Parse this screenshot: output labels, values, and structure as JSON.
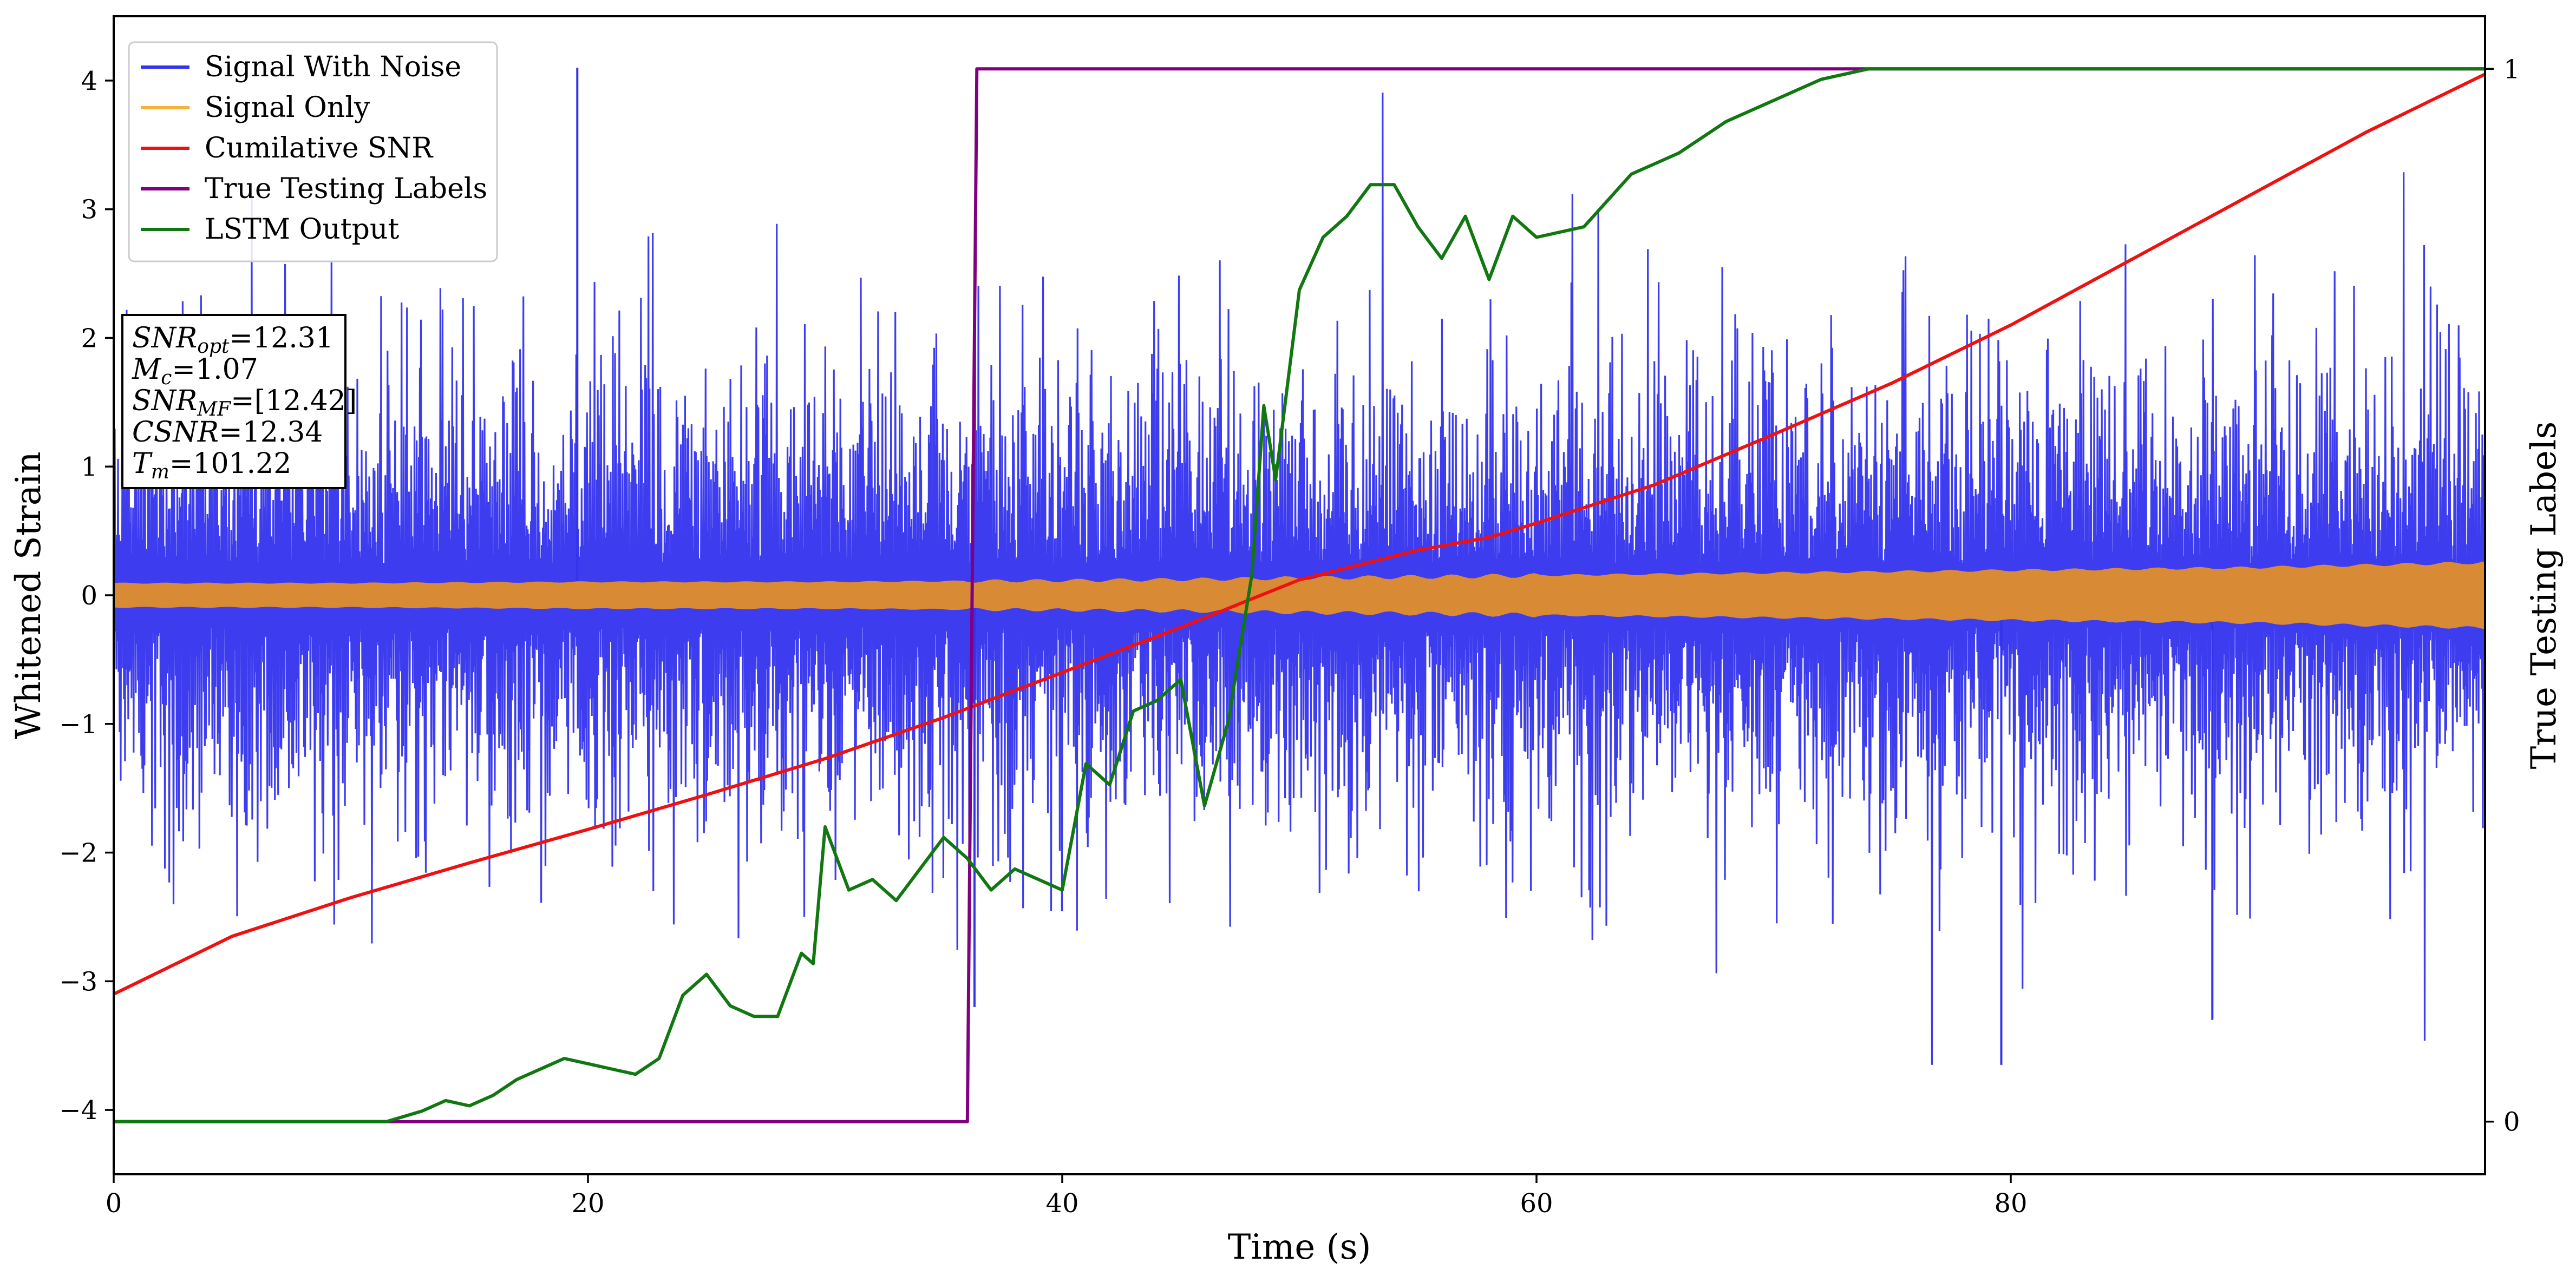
{
  "chart_data": {
    "type": "line",
    "xlabel": "Time (s)",
    "ylabel": "Whitened Strain",
    "ylabel_right": "True Testing Labels",
    "xlim": [
      0,
      100
    ],
    "ylim": [
      -4.5,
      4.5
    ],
    "ylim_right": [
      -0.05,
      1.05
    ],
    "x_ticks": [
      0,
      20,
      40,
      60,
      80
    ],
    "y_ticks": [
      -4,
      -3,
      -2,
      -1,
      0,
      1,
      2,
      3,
      4
    ],
    "y_ticks_right": [
      0,
      1
    ],
    "grid": false,
    "legend_position": "top-left",
    "legend": [
      {
        "name": "Signal With Noise",
        "color": "#3333ee"
      },
      {
        "name": "Signal Only",
        "color": "#f5b13c"
      },
      {
        "name": "Cumilative SNR",
        "color": "#ee1111"
      },
      {
        "name": "True Testing Labels",
        "color": "#800080"
      },
      {
        "name": "LSTM Output",
        "color": "#117711"
      }
    ],
    "annotation": [
      {
        "base": "SNR",
        "sub": "opt",
        "value": "=12.31"
      },
      {
        "base": "M",
        "sub": "c",
        "value": "=1.07"
      },
      {
        "base": "SNR",
        "sub": "MF",
        "value": "=[12.42]"
      },
      {
        "base": "CSNR",
        "sub": "",
        "value": "=12.34"
      },
      {
        "base": "T",
        "sub": "m",
        "value": "=101.22"
      }
    ],
    "series": [
      {
        "name": "Signal With Noise",
        "color": "#3333ee",
        "axis": "left",
        "style": "dense-noise",
        "envelope_hint": {
          "typical_upper": 1.8,
          "typical_lower": -1.8,
          "max": 4.1,
          "min": -3.65
        }
      },
      {
        "name": "Signal Only",
        "color": "#f5b13c",
        "axis": "left",
        "style": "envelope",
        "x": [
          0,
          10,
          20,
          30,
          40,
          46,
          50,
          56,
          60,
          70,
          80,
          90,
          100
        ],
        "amplitude": [
          0.09,
          0.09,
          0.1,
          0.1,
          0.11,
          0.12,
          0.13,
          0.14,
          0.15,
          0.17,
          0.19,
          0.21,
          0.25
        ]
      },
      {
        "name": "Cumilative SNR",
        "color": "#ee1111",
        "axis": "left",
        "x": [
          0,
          5,
          10,
          15,
          20,
          25,
          30,
          35,
          40,
          45,
          50,
          55,
          58,
          60,
          65,
          70,
          75,
          80,
          85,
          90,
          95,
          100
        ],
        "y": [
          -3.1,
          -2.65,
          -2.35,
          -2.08,
          -1.82,
          -1.55,
          -1.27,
          -0.95,
          -0.6,
          -0.25,
          0.12,
          0.35,
          0.45,
          0.56,
          0.86,
          1.25,
          1.65,
          2.1,
          2.6,
          3.1,
          3.6,
          4.05
        ]
      },
      {
        "name": "True Testing Labels",
        "color": "#800080",
        "axis": "right",
        "x": [
          0,
          36.0,
          36.4,
          100
        ],
        "y": [
          0,
          0,
          1,
          1
        ]
      },
      {
        "name": "LSTM Output",
        "color": "#117711",
        "axis": "right",
        "x": [
          0,
          11.5,
          13,
          14,
          15,
          16,
          17,
          18,
          19,
          20,
          21,
          22,
          23,
          24,
          25,
          26,
          27,
          28,
          29,
          29.5,
          30,
          31,
          32,
          33,
          34,
          35,
          36,
          37,
          38,
          39,
          40,
          41,
          42,
          43,
          44,
          45,
          46,
          47,
          48,
          48.5,
          49,
          50,
          51,
          52,
          53,
          54,
          55,
          56,
          57,
          58,
          59,
          60,
          62,
          64,
          66,
          68,
          70,
          72,
          74,
          76,
          80,
          100
        ],
        "y": [
          0,
          0,
          0.01,
          0.02,
          0.015,
          0.025,
          0.04,
          0.05,
          0.06,
          0.055,
          0.05,
          0.045,
          0.06,
          0.12,
          0.14,
          0.11,
          0.1,
          0.1,
          0.16,
          0.15,
          0.28,
          0.22,
          0.23,
          0.21,
          0.24,
          0.27,
          0.25,
          0.22,
          0.24,
          0.23,
          0.22,
          0.34,
          0.32,
          0.39,
          0.4,
          0.42,
          0.3,
          0.38,
          0.52,
          0.68,
          0.61,
          0.79,
          0.84,
          0.86,
          0.89,
          0.89,
          0.85,
          0.82,
          0.86,
          0.8,
          0.86,
          0.84,
          0.85,
          0.9,
          0.92,
          0.95,
          0.97,
          0.99,
          1.0,
          1.0,
          1.0,
          1.0
        ]
      }
    ]
  }
}
